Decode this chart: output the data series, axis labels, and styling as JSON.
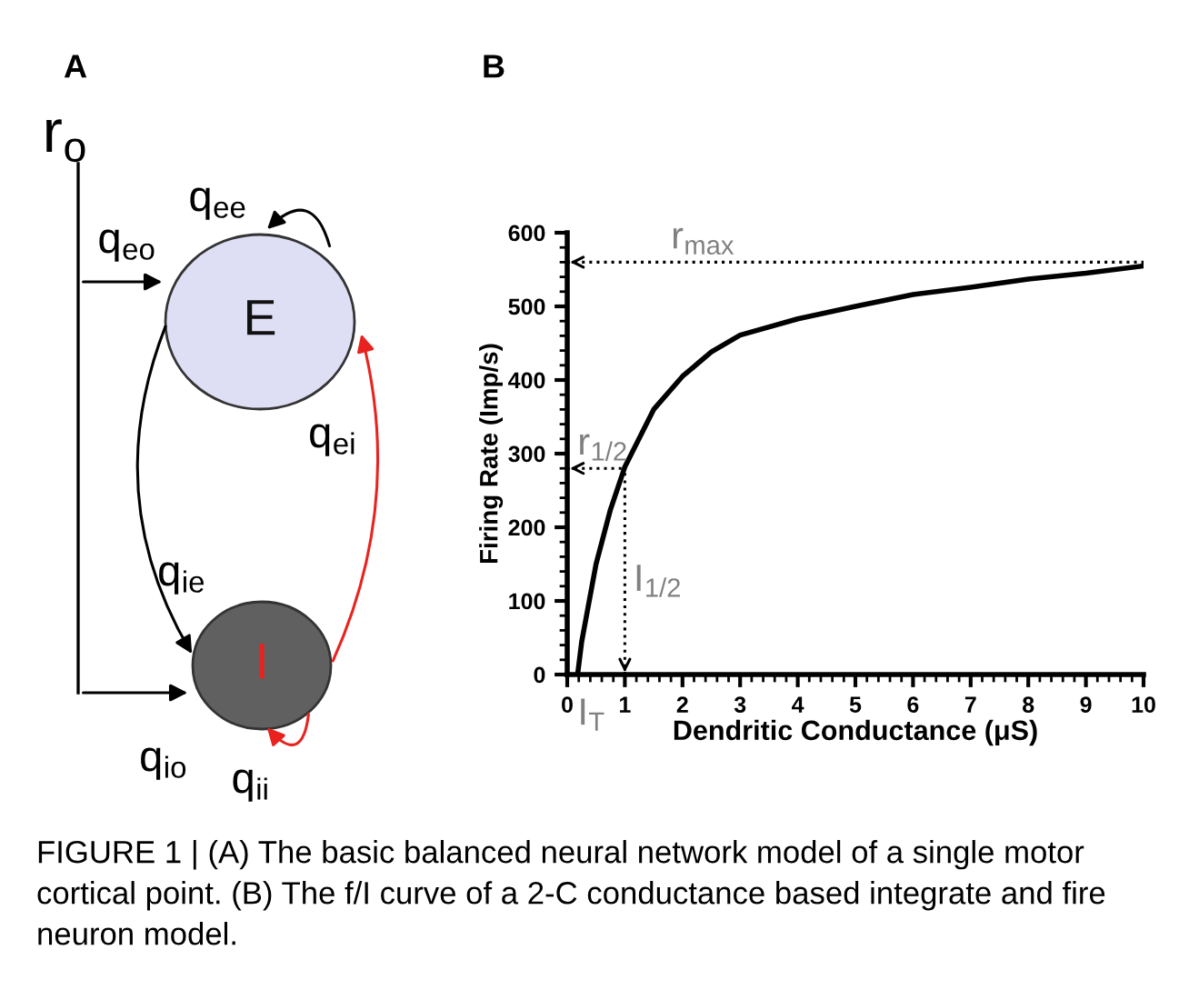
{
  "chart_data": [
    {
      "type": "other",
      "title": "A",
      "annotations": [
        "r$_{o}$",
        "q$_{eo}$",
        "q$_{ee}$",
        "E",
        "q$_{ei}$",
        "q$_{ie}$",
        "I",
        "q$_{io}$",
        "q$_{ii}$"
      ]
    },
    {
      "type": "line",
      "title": "B",
      "xlabel": "Dendritic Conductance (μS)",
      "ylabel": "Firing Rate (Imp/s)",
      "xlim": [
        0,
        10
      ],
      "xticks": [
        0,
        1,
        2,
        3,
        4,
        5,
        6,
        7,
        8,
        9,
        10
      ],
      "ylim": [
        0,
        600
      ],
      "yticks": [
        0,
        100,
        200,
        300,
        400,
        500,
        600
      ],
      "grid": false,
      "legend": false,
      "marker": "none",
      "line_style": "solid",
      "series": [
        {
          "color": "#000000",
          "x": [
            0.18,
            0.25,
            0.5,
            0.75,
            1,
            1.5,
            2,
            2.5,
            3,
            4,
            5,
            6,
            7,
            8,
            9,
            10
          ],
          "values": [
            0,
            44,
            150,
            224,
            282,
            360,
            405,
            438,
            461,
            483,
            500,
            516,
            526,
            537,
            545,
            555
          ]
        }
      ],
      "ref_lines": [
        {
          "axis": "y",
          "value": 560,
          "label": "r$_{max}$",
          "line_style": "dotted",
          "color": "#000000"
        },
        {
          "axis": "y",
          "value": 280,
          "label": "r$_{1/2}$",
          "line_style": "dotted",
          "color": "#000000"
        },
        {
          "axis": "x",
          "value": 1,
          "label": "I$_{1/2}$",
          "line_style": "dotted",
          "color": "#000000"
        }
      ],
      "annotations": [
        {
          "text": "I$_{T}$",
          "x": 0.18,
          "y": 0
        },
        "FIGURE 1 | (A) The basic balanced neural network model of a single motor cortical point. (B) The f/I curve of a 2-C conductance based integrate and fire neuron model."
      ]
    }
  ]
}
